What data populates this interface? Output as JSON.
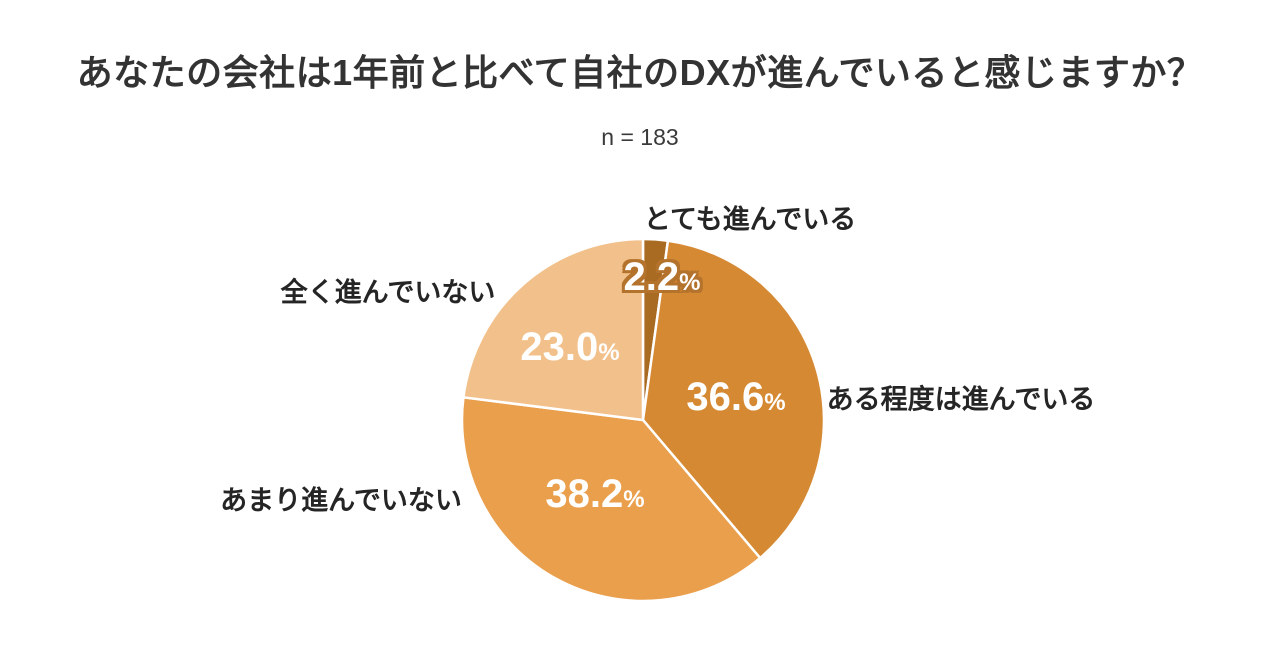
{
  "title": "あなたの会社は1年前と比べて自社のDXが進んでいると感じますか？",
  "sample_size_text": "n = 183",
  "percent_sign": "%",
  "colors": {
    "background": "#ffffff",
    "title_text": "#333333",
    "category_label_text": "#252525",
    "percent_label_text": "#ffffff",
    "percent_label_outline": "#b4732d",
    "slice_separator": "#ffffff"
  },
  "chart_data": {
    "type": "pie",
    "title": "あなたの会社は1年前と比べて自社のDXが進んでいると感じますか？",
    "subtitle": "n = 183",
    "sample_n": 183,
    "start_angle_deg": 0,
    "direction": "clockwise",
    "legend_position": "labels-outside",
    "slices": [
      {
        "label": "とても進んでいる",
        "value": 2.2,
        "pct_text": "2.2",
        "color": "#a96a22"
      },
      {
        "label": "ある程度は進んでいる",
        "value": 36.6,
        "pct_text": "36.6",
        "color": "#d68933"
      },
      {
        "label": "あまり進んでいない",
        "value": 38.2,
        "pct_text": "38.2",
        "color": "#ea9f4d"
      },
      {
        "label": "全く進んでいない",
        "value": 23.0,
        "pct_text": "23.0",
        "color": "#f2c08a"
      }
    ]
  }
}
